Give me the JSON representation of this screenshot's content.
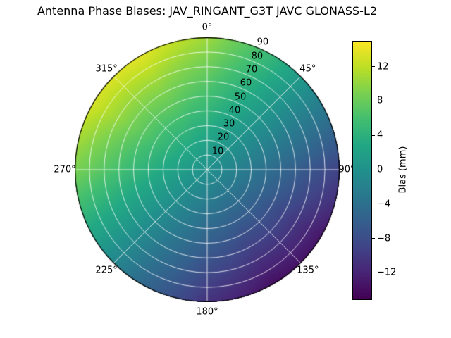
{
  "chart_data": {
    "type": "heatmap",
    "projection": "polar",
    "title": "Antenna Phase Biases: JAV_RINGANT_G3T JAVC GLONASS-L2",
    "colormap": "viridis",
    "clim": [
      -15,
      15
    ],
    "colorbar": {
      "label": "Bias (mm)",
      "ticks": [
        {
          "label": "12",
          "value": 12
        },
        {
          "label": "8",
          "value": 8
        },
        {
          "label": "4",
          "value": 4
        },
        {
          "label": "0",
          "value": 0
        },
        {
          "label": "−4",
          "value": -4
        },
        {
          "label": "−8",
          "value": -8
        },
        {
          "label": "−12",
          "value": -12
        }
      ]
    },
    "theta_tick_labels": [
      {
        "label": "0°",
        "deg": 0
      },
      {
        "label": "45°",
        "deg": 45
      },
      {
        "label": "90°",
        "deg": 90
      },
      {
        "label": "135°",
        "deg": 135
      },
      {
        "label": "180°",
        "deg": 180
      },
      {
        "label": "225°",
        "deg": 225
      },
      {
        "label": "270°",
        "deg": 270
      },
      {
        "label": "315°",
        "deg": 315
      }
    ],
    "r_tick_labels": [
      {
        "label": "10",
        "zenith": 10
      },
      {
        "label": "20",
        "zenith": 20
      },
      {
        "label": "30",
        "zenith": 30
      },
      {
        "label": "40",
        "zenith": 40
      },
      {
        "label": "50",
        "zenith": 50
      },
      {
        "label": "60",
        "zenith": 60
      },
      {
        "label": "70",
        "zenith": 70
      },
      {
        "label": "80",
        "zenith": 80
      },
      {
        "label": "90",
        "zenith": 90
      }
    ],
    "r_label_azimuth_deg": 22.5,
    "azimuth_deg": [
      0,
      30,
      60,
      90,
      120,
      150,
      180,
      210,
      240,
      270,
      300,
      330
    ],
    "zenith_deg": [
      0,
      10,
      20,
      30,
      40,
      50,
      60,
      70,
      80,
      90
    ],
    "bias_mm": [
      [
        0.0,
        0.0,
        0.0,
        0.0,
        0.0,
        0.0,
        0.0,
        0.0,
        0.0,
        0.0,
        0.0,
        0.0
      ],
      [
        1.2,
        0.5,
        -0.3,
        -1.0,
        -1.5,
        -1.5,
        -1.2,
        -0.5,
        0.3,
        1.0,
        1.5,
        1.5
      ],
      [
        2.4,
        1.1,
        -0.5,
        -2.0,
        -2.9,
        -3.1,
        -2.4,
        -1.1,
        0.5,
        2.0,
        2.9,
        3.1
      ],
      [
        3.6,
        1.6,
        -0.8,
        -3.0,
        -4.4,
        -4.6,
        -3.6,
        -1.6,
        0.8,
        3.0,
        4.4,
        4.6
      ],
      [
        4.8,
        2.1,
        -1.1,
        -4.0,
        -5.9,
        -6.1,
        -4.8,
        -2.1,
        1.1,
        4.0,
        5.9,
        6.1
      ],
      [
        5.9,
        2.7,
        -1.3,
        -5.0,
        -7.3,
        -7.7,
        -5.9,
        -2.7,
        1.3,
        5.0,
        7.3,
        7.7
      ],
      [
        7.1,
        3.2,
        -1.6,
        -6.0,
        -8.8,
        -9.2,
        -7.1,
        -3.2,
        1.6,
        6.0,
        8.8,
        9.2
      ],
      [
        8.3,
        3.7,
        -1.9,
        -7.0,
        -10.3,
        -10.7,
        -8.3,
        -3.7,
        1.9,
        7.0,
        10.3,
        10.7
      ],
      [
        9.5,
        4.3,
        -2.1,
        -8.0,
        -11.7,
        -12.3,
        -9.5,
        -4.3,
        2.1,
        8.0,
        11.7,
        12.3
      ],
      [
        10.7,
        4.8,
        -2.4,
        -9.0,
        -13.2,
        -13.8,
        -10.7,
        -4.8,
        2.4,
        9.0,
        13.2,
        13.8
      ]
    ]
  }
}
